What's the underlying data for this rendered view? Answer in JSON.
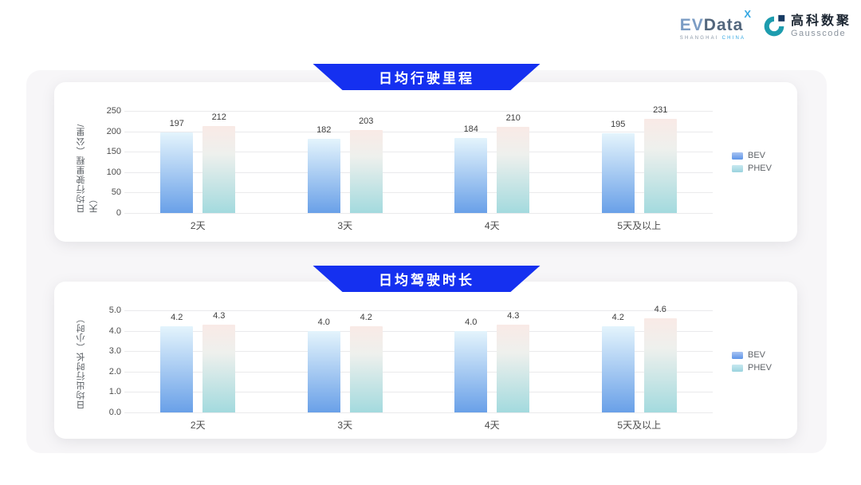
{
  "logo": {
    "brand_ev": "EV",
    "brand_rest": "Data",
    "brand_sup": "X",
    "caption_left": "SHANGHAI",
    "caption_right": "CHINA",
    "partner_cn": "高科数聚",
    "partner_en": "Gausscode"
  },
  "colors": {
    "banner_blue": "#1530f0",
    "panel_bg": "#f7f6f8",
    "card_bg": "#ffffff",
    "gridline": "#eaeaec",
    "bev_gradient_top": "#e4f4fc",
    "bev_gradient_bottom": "#69a0e8",
    "phev_gradient_top": "#f9eae6",
    "phev_gradient_mid": "#eef0ed",
    "phev_gradient_bottom": "#a3dade",
    "bev_swatch": "#5e95e8",
    "phev_swatch": "#9ad3de"
  },
  "chart_data": [
    {
      "type": "bar",
      "title": "日均行驶里程",
      "ylabel": "日均行驶里程（公里/天）",
      "xlabel": "",
      "categories": [
        "2天",
        "3天",
        "4天",
        "5天及以上"
      ],
      "series": [
        {
          "name": "BEV",
          "values": [
            197,
            182,
            184,
            195
          ],
          "labels": [
            "197",
            "182",
            "184",
            "195"
          ]
        },
        {
          "name": "PHEV",
          "values": [
            212,
            203,
            210,
            231
          ],
          "labels": [
            "212",
            "203",
            "210",
            "231"
          ]
        }
      ],
      "ylim": [
        0,
        250
      ],
      "y_ticks": [
        "0",
        "50",
        "100",
        "150",
        "200",
        "250"
      ],
      "grid": true,
      "legend_position": "right",
      "value_labels": true
    },
    {
      "type": "bar",
      "title": "日均驾驶时长",
      "ylabel": "日均出行时长（小时）",
      "xlabel": "",
      "categories": [
        "2天",
        "3天",
        "4天",
        "5天及以上"
      ],
      "series": [
        {
          "name": "BEV",
          "values": [
            4.2,
            4.0,
            4.0,
            4.2
          ],
          "labels": [
            "4.2",
            "4.0",
            "4.0",
            "4.2"
          ]
        },
        {
          "name": "PHEV",
          "values": [
            4.3,
            4.2,
            4.3,
            4.6
          ],
          "labels": [
            "4.3",
            "4.2",
            "4.3",
            "4.6"
          ]
        }
      ],
      "ylim": [
        0,
        5
      ],
      "y_ticks": [
        "0.0",
        "1.0",
        "2.0",
        "3.0",
        "4.0",
        "5.0"
      ],
      "grid": true,
      "legend_position": "right",
      "value_labels": true
    }
  ]
}
